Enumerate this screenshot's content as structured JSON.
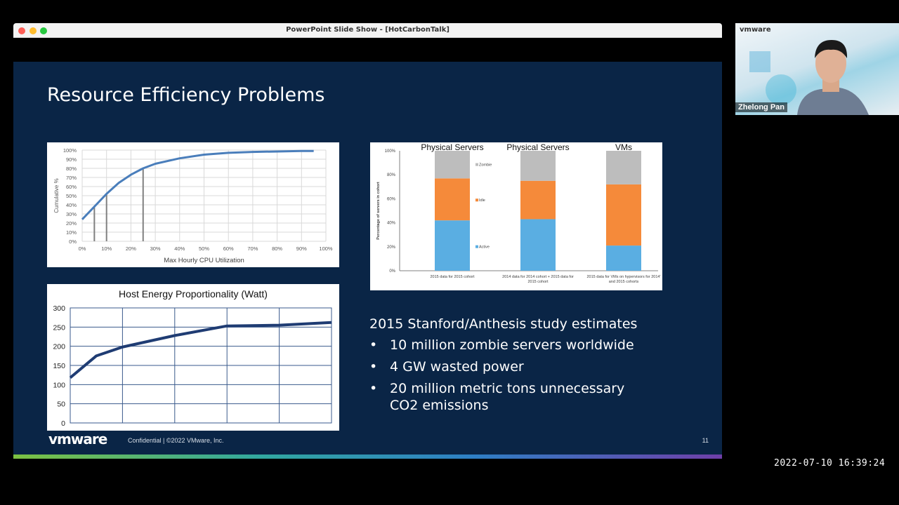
{
  "window": {
    "title": "PowerPoint Slide Show - [HotCarbonTalk]"
  },
  "slide": {
    "title": "Resource Efficiency Problems",
    "study_heading": "2015 Stanford/Anthesis study estimates",
    "bullets": [
      "10 million zombie servers worldwide",
      "4 GW wasted power",
      "20 million metric tons unnecessary CO2 emissions"
    ],
    "bullet_glyph": "•",
    "footer_logo": "vmware",
    "footer_text": "Confidential   |   ©2022 VMware, Inc.",
    "page_number": "11"
  },
  "video": {
    "brand": "vmware",
    "participant": "Zhelong Pan"
  },
  "timestamp": "2022-07-10 16:39:24",
  "colors": {
    "slide_bg": "#0a2546",
    "cdf_line": "#4a7ebb",
    "active": "#5aaee2",
    "idle": "#f58a3a",
    "zombie": "#bdbdbd",
    "energy_line": "#1f3c73"
  },
  "chart_data": [
    {
      "type": "line",
      "title": "",
      "xlabel": "Max Hourly CPU Utilization",
      "ylabel": "Cumulative %",
      "x_ticks": [
        "0%",
        "10%",
        "20%",
        "30%",
        "40%",
        "50%",
        "60%",
        "70%",
        "80%",
        "90%",
        "100%"
      ],
      "y_ticks": [
        "0%",
        "10%",
        "20%",
        "30%",
        "40%",
        "50%",
        "60%",
        "70%",
        "80%",
        "90%",
        "100%"
      ],
      "xlim": [
        0,
        100
      ],
      "ylim": [
        0,
        100
      ],
      "grid": true,
      "x": [
        0,
        5,
        10,
        15,
        20,
        25,
        30,
        40,
        50,
        60,
        70,
        80,
        90,
        95
      ],
      "y": [
        24,
        38,
        52,
        64,
        73,
        80,
        85,
        91,
        95,
        97,
        98,
        98.5,
        99,
        99
      ],
      "markers_x": [
        5,
        10,
        25
      ]
    },
    {
      "type": "bar",
      "title": "",
      "ylabel": "Percentage of servers in cohort",
      "y_ticks": [
        "0%",
        "20%",
        "40%",
        "60%",
        "80%",
        "100%"
      ],
      "ylim": [
        0,
        100
      ],
      "column_titles": [
        "Physical Servers",
        "Physical Servers",
        "VMs"
      ],
      "categories": [
        "2015 data for 2015 cohort",
        "2014 data for 2014 cohort + 2015 data for 2015 cohort",
        "2015 data for VMs on hypervisors for 2014' and 2015 cohorts"
      ],
      "series": [
        {
          "name": "Active",
          "values": [
            42,
            43,
            21
          ]
        },
        {
          "name": "Idle",
          "values": [
            35,
            32,
            51
          ]
        },
        {
          "name": "Zombie",
          "values": [
            23,
            25,
            28
          ]
        }
      ]
    },
    {
      "type": "line",
      "title": "Host Energy Proportionality (Watt)",
      "y_ticks": [
        "0",
        "50",
        "100",
        "150",
        "200",
        "250",
        "300"
      ],
      "ylim": [
        0,
        300
      ],
      "xlim": [
        0,
        100
      ],
      "grid": true,
      "x": [
        0,
        10,
        20,
        40,
        60,
        80,
        100
      ],
      "y": [
        118,
        175,
        198,
        228,
        253,
        255,
        262
      ]
    }
  ]
}
